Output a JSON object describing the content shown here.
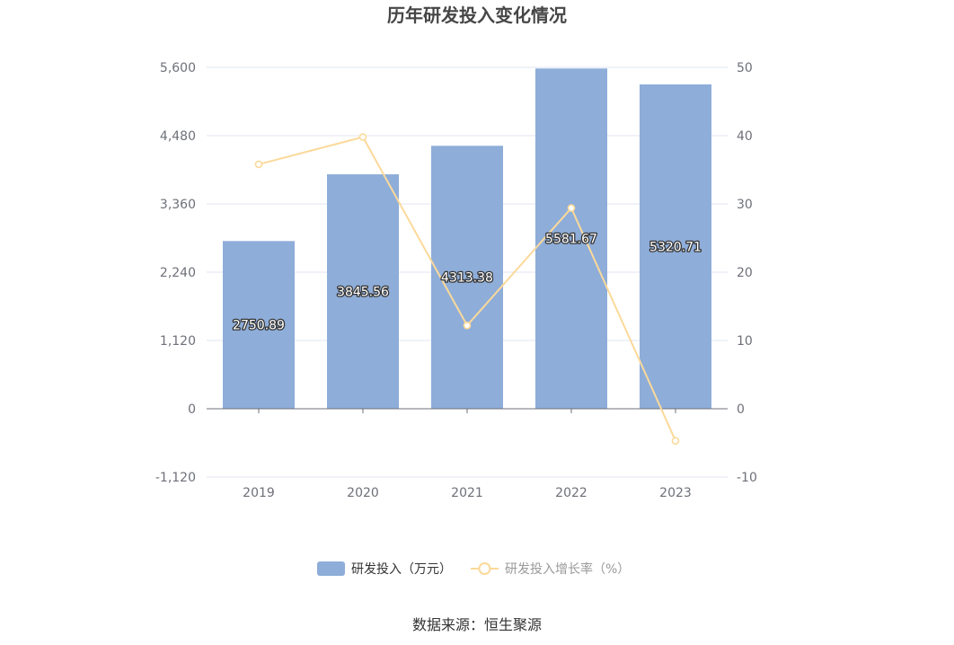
{
  "chart_data": {
    "type": "bar",
    "title": "历年研发投入变化情况",
    "categories": [
      "2019",
      "2020",
      "2021",
      "2022",
      "2023"
    ],
    "series": [
      {
        "name": "研发投入（万元）",
        "type": "bar",
        "axis": "left",
        "color": "#8eadd9",
        "values": [
          2750.89,
          3845.56,
          4313.38,
          5581.67,
          5320.71
        ],
        "labels": [
          "2750.89",
          "3845.56",
          "4313.38",
          "5581.67",
          "5320.71"
        ]
      },
      {
        "name": "研发投入增长率（%）",
        "type": "line",
        "axis": "right",
        "color": "#fbd99a",
        "values": [
          35.8,
          39.8,
          12.2,
          29.4,
          -4.7
        ]
      }
    ],
    "y_left": {
      "range": [
        -1120,
        5600
      ],
      "ticks": [
        5600,
        4480,
        3360,
        2240,
        1120,
        0,
        -1120
      ],
      "tick_labels": [
        "5,600",
        "4,480",
        "3,360",
        "2,240",
        "1,120",
        "0",
        "-1,120"
      ]
    },
    "y_right": {
      "range": [
        -10,
        50
      ],
      "ticks": [
        50,
        40,
        30,
        20,
        10,
        0,
        -10
      ],
      "tick_labels": [
        "50",
        "40",
        "30",
        "20",
        "10",
        "0",
        "-10"
      ]
    },
    "grid": true,
    "legend_position": "bottom"
  },
  "source_text": "数据来源：恒生聚源"
}
